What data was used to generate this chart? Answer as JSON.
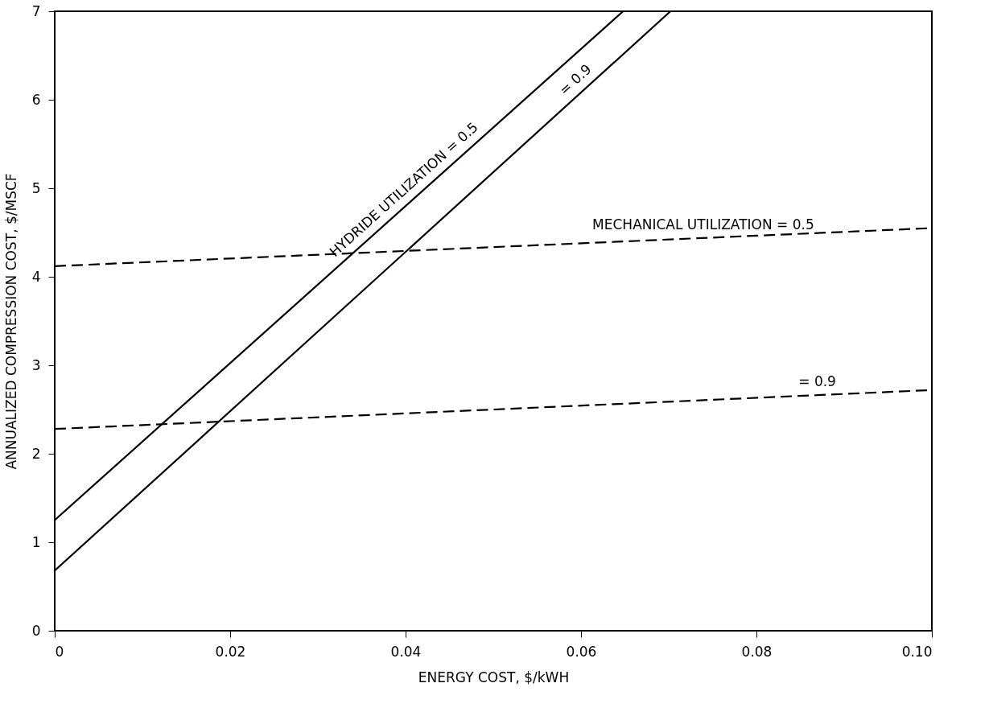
{
  "chart_data": {
    "type": "line",
    "xlabel": "ENERGY COST, $/kWH",
    "ylabel": "ANNUALIZED COMPRESSION COST, $/MSCF",
    "xlim": [
      0,
      0.1
    ],
    "ylim": [
      0,
      7
    ],
    "xticks": [
      0,
      0.02,
      0.04,
      0.06,
      0.08,
      {
        "value": 0.1,
        "label": "0.10"
      }
    ],
    "yticks": [
      0,
      1,
      2,
      3,
      4,
      5,
      6,
      7
    ],
    "grid": false,
    "marker": "none",
    "series": [
      {
        "color": "#000000",
        "line_style": "solid",
        "x": [
          0,
          0.0648
        ],
        "values": [
          1.25,
          7
        ]
      },
      {
        "color": "#000000",
        "line_style": "solid",
        "x": [
          0,
          0.0702
        ],
        "values": [
          0.68,
          7
        ]
      },
      {
        "color": "#000000",
        "line_style": "dashed",
        "x": [
          0,
          0.1
        ],
        "values": [
          4.12,
          4.55
        ]
      },
      {
        "color": "#000000",
        "line_style": "dashed",
        "x": [
          0,
          0.1
        ],
        "values": [
          2.28,
          2.72
        ]
      }
    ],
    "annotations": [
      "HYDRIDE UTILIZATION = 0.5",
      "= 0.9",
      "MECHANICAL UTILIZATION = 0.5",
      "= 0.9"
    ]
  }
}
